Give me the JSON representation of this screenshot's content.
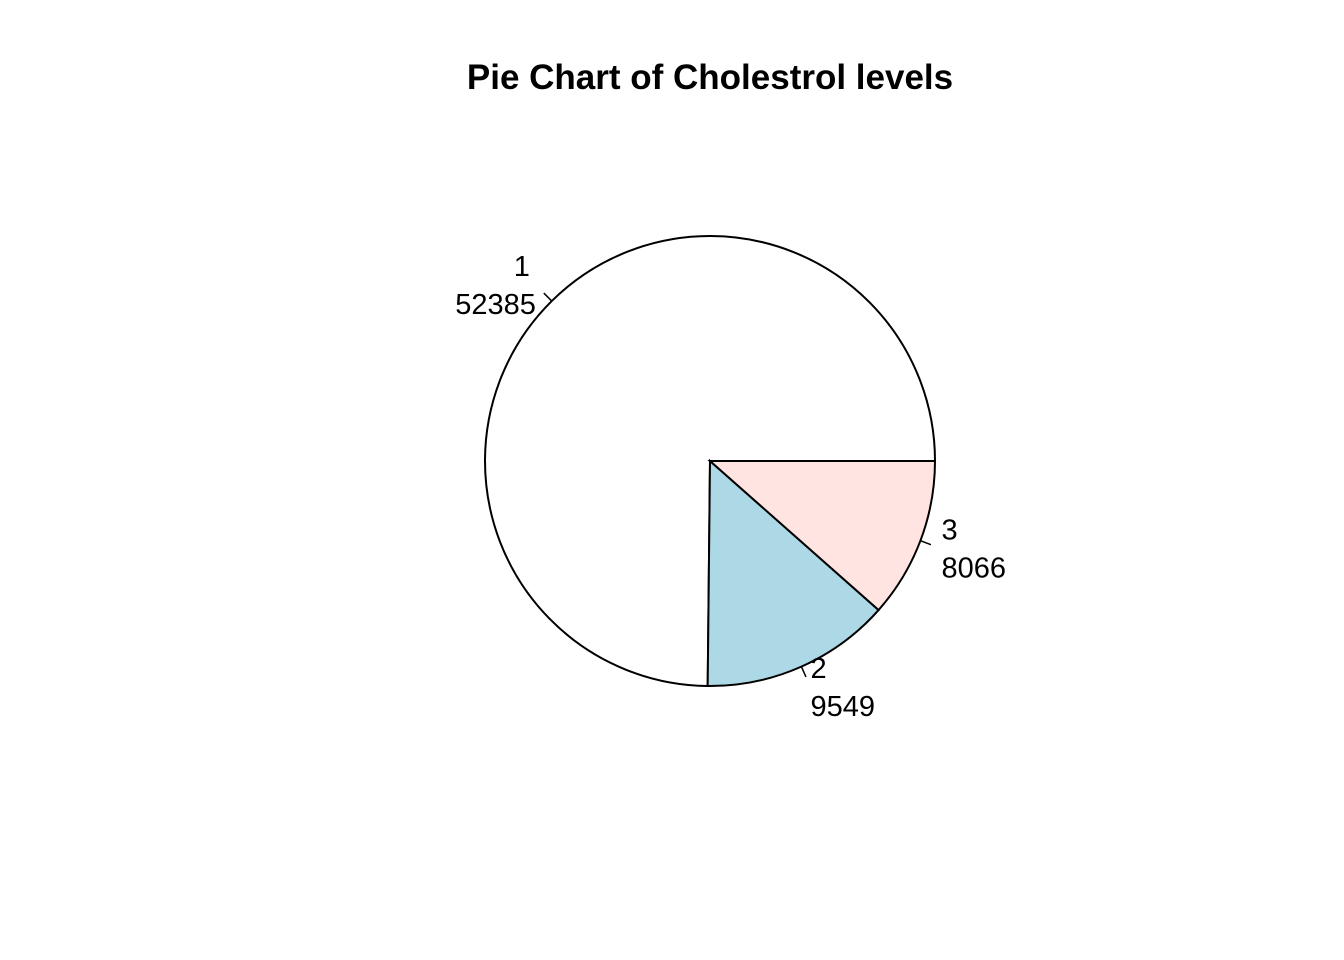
{
  "chart_data": {
    "type": "pie",
    "title": "Pie Chart of Cholestrol levels",
    "slices": [
      {
        "label": "1",
        "value": 52385,
        "color": "#ffffff"
      },
      {
        "label": "2",
        "value": 9549,
        "color": "#add8e6"
      },
      {
        "label": "3",
        "value": 8066,
        "color": "#ffe4e1"
      }
    ],
    "start_angle_deg": 0,
    "direction": "counterclockwise"
  }
}
